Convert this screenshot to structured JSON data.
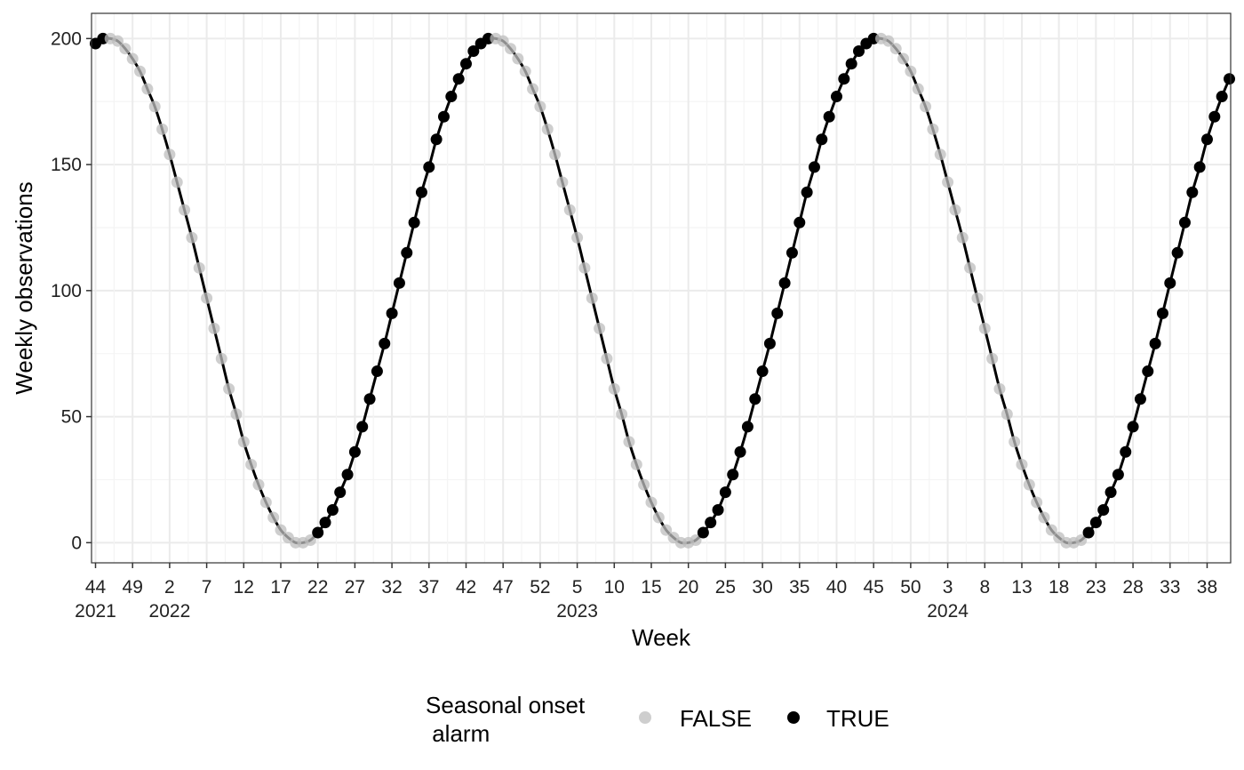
{
  "chart_data": {
    "type": "line",
    "xlabel": "Week",
    "ylabel": "Weekly observations",
    "x_start": {
      "year": 2021,
      "week": 44
    },
    "x_end": {
      "year": 2024,
      "week": 40
    },
    "ylim": [
      -8,
      210
    ],
    "y_ticks": [
      0,
      50,
      100,
      150,
      200
    ],
    "x_tick_labels": [
      "44",
      "49",
      "2",
      "7",
      "12",
      "17",
      "22",
      "27",
      "32",
      "37",
      "42",
      "47",
      "52",
      "5",
      "10",
      "15",
      "20",
      "25",
      "30",
      "35",
      "40",
      "45",
      "50",
      "3",
      "8",
      "13",
      "18",
      "23",
      "28",
      "33",
      "38"
    ],
    "year_labels": [
      "2021",
      "2022",
      "2023",
      "2024"
    ],
    "grid": true,
    "series": [
      {
        "values": [
          198,
          200,
          200,
          199,
          196,
          192,
          187,
          180,
          173,
          164,
          154,
          143,
          132,
          121,
          109,
          97,
          85,
          73,
          61,
          51,
          40,
          31,
          23,
          16,
          10,
          5,
          2,
          0,
          0,
          1,
          4,
          8,
          13,
          20,
          27,
          36,
          46,
          57,
          68,
          79,
          91,
          103,
          115,
          127,
          139,
          149,
          160,
          169,
          177,
          184,
          190,
          195,
          198,
          200,
          200,
          199,
          196,
          192,
          187,
          180,
          173,
          164,
          154,
          143,
          132,
          121,
          109,
          97,
          85,
          73,
          61,
          51,
          40,
          31,
          23,
          16,
          10,
          5,
          2,
          0,
          0,
          1,
          4,
          8,
          13,
          20,
          27,
          36,
          46,
          57,
          68,
          79,
          91,
          103,
          115,
          127,
          139,
          149,
          160,
          169,
          177,
          184,
          190,
          195,
          198,
          200,
          200,
          199,
          196,
          192,
          187,
          180,
          173,
          164,
          154,
          143,
          132,
          121,
          109,
          97,
          85,
          73,
          61,
          51,
          40,
          31,
          23,
          16,
          10,
          5,
          2,
          0,
          0,
          1,
          4,
          8,
          13,
          20,
          27,
          36,
          46,
          57,
          68,
          79,
          91,
          103,
          115,
          127,
          139,
          149,
          160,
          169,
          177,
          184
        ],
        "alarm": [
          true,
          true,
          false,
          false,
          false,
          false,
          false,
          false,
          false,
          false,
          false,
          false,
          false,
          false,
          false,
          false,
          false,
          false,
          false,
          false,
          false,
          false,
          false,
          false,
          false,
          false,
          false,
          false,
          false,
          false,
          true,
          true,
          true,
          true,
          true,
          true,
          true,
          true,
          true,
          true,
          true,
          true,
          true,
          true,
          true,
          true,
          true,
          true,
          true,
          true,
          true,
          true,
          true,
          true,
          false,
          false,
          false,
          false,
          false,
          false,
          false,
          false,
          false,
          false,
          false,
          false,
          false,
          false,
          false,
          false,
          false,
          false,
          false,
          false,
          false,
          false,
          false,
          false,
          false,
          false,
          false,
          false,
          true,
          true,
          true,
          true,
          true,
          true,
          true,
          true,
          true,
          true,
          true,
          true,
          true,
          true,
          true,
          true,
          true,
          true,
          true,
          true,
          true,
          true,
          true,
          true,
          false,
          false,
          false,
          false,
          false,
          false,
          false,
          false,
          false,
          false,
          false,
          false,
          false,
          false,
          false,
          false,
          false,
          false,
          false,
          false,
          false,
          false,
          false,
          false,
          false,
          false,
          false,
          false,
          true,
          true,
          true,
          true,
          true,
          true,
          true,
          true,
          true,
          true,
          true,
          true,
          true,
          true,
          true,
          true,
          true,
          true,
          true,
          true
        ]
      }
    ],
    "legend": {
      "title": "Seasonal onset\n alarm",
      "position": "bottom",
      "entries": [
        {
          "label": "FALSE",
          "color": "#bdbdbd"
        },
        {
          "label": "TRUE",
          "color": "#000000"
        }
      ]
    }
  },
  "colors": {
    "line": "#000000",
    "point_true": "#000000",
    "point_false": "#bdbdbd",
    "grid_major": "#ebebeb",
    "grid_minor": "#f4f4f4",
    "panel_border": "#333333"
  }
}
